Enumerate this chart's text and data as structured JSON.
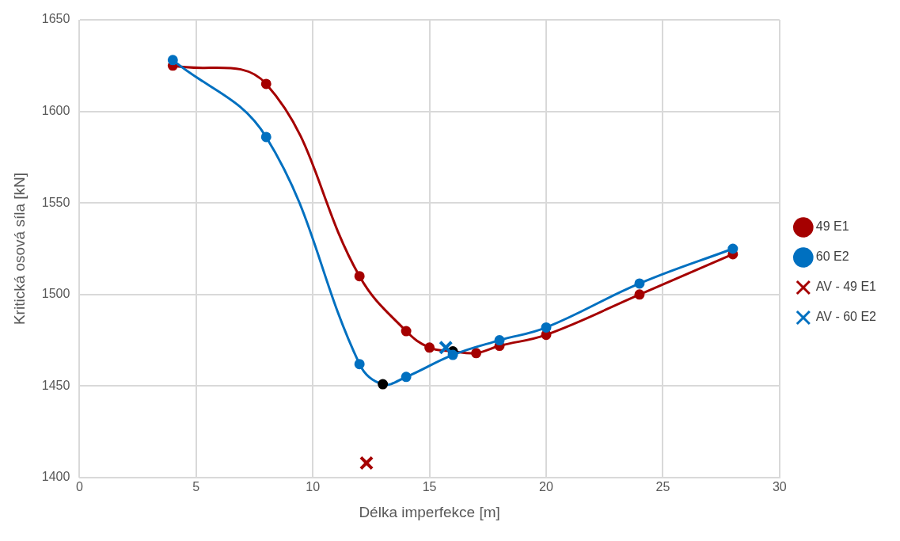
{
  "chart_data": {
    "type": "line",
    "xlabel": "Délka imperfekce [m]",
    "ylabel": "Kritická osová síla [kN]",
    "xlim": [
      0,
      30
    ],
    "xticks": [
      0,
      5,
      10,
      15,
      20,
      25,
      30
    ],
    "ylim": [
      1400,
      1650
    ],
    "yticks": [
      1400,
      1450,
      1500,
      1550,
      1600,
      1650
    ],
    "grid": true,
    "legend": "right",
    "marker": "circle",
    "series": [
      {
        "name": "49 E1",
        "color": "#a50000",
        "x": [
          4,
          8,
          12,
          14,
          15,
          16,
          17,
          18,
          20,
          24,
          28
        ],
        "values": [
          1625,
          1615,
          1510,
          1480,
          1471,
          1469,
          1468,
          1472,
          1478,
          1500,
          1522
        ],
        "colors": [
          "#a50000",
          "#a50000",
          "#a50000",
          "#a50000",
          "#a50000",
          "#000000",
          "#a50000",
          "#a50000",
          "#a50000",
          "#a50000",
          "#a50000"
        ]
      },
      {
        "name": "60 E2",
        "color": "#0070c0",
        "x": [
          4,
          8,
          12,
          13,
          14,
          16,
          18,
          20,
          24,
          28
        ],
        "values": [
          1628,
          1586,
          1462,
          1451,
          1455,
          1467,
          1475,
          1482,
          1506,
          1525
        ],
        "colors": [
          "#0070c0",
          "#0070c0",
          "#0070c0",
          "#000000",
          "#0070c0",
          "#0070c0",
          "#0070c0",
          "#0070c0",
          "#0070c0",
          "#0070c0"
        ]
      },
      {
        "name": "AV - 49 E1",
        "type": "scatter",
        "marker": "cross",
        "color": "#a50000",
        "x": [
          12.3
        ],
        "values": [
          1408
        ]
      },
      {
        "name": "AV - 60 E2",
        "type": "scatter",
        "marker": "cross",
        "color": "#0070c0",
        "x": [
          15.7
        ],
        "values": [
          1471
        ]
      }
    ]
  }
}
